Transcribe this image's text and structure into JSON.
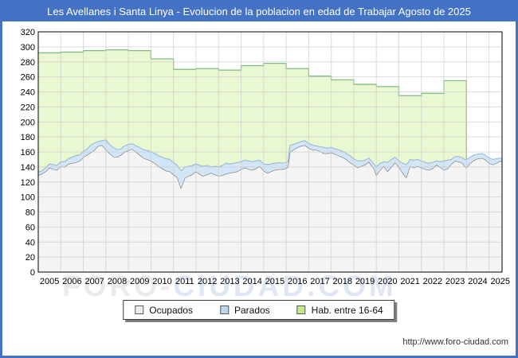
{
  "header": {
    "title": "Les Avellanes i Santa Linya - Evolucion de la poblacion en edad de Trabajar Agosto de 2025"
  },
  "watermark": {
    "part1": "FORO-",
    "part2": "CIUDAD.COM"
  },
  "footer": {
    "url": "http://www.foro-ciudad.com"
  },
  "colors": {
    "accent_blue": "#4473c5",
    "plot_border": "#000000",
    "grid": "#c9c9c9",
    "hab_fill": "#e9f8d1",
    "hab_line": "#81ba81",
    "parados_fill": "#d3e6f7",
    "parados_line": "#92b3d8",
    "ocupados_fill": "#f4f4f4",
    "ocupados_line": "#5a5a5a",
    "axis_text": "#000000",
    "watermark_gray": "#ebebeb",
    "watermark_blue": "#dfe7f6"
  },
  "legend": {
    "items": [
      {
        "label": "Ocupados",
        "swatch": "#ededed"
      },
      {
        "label": "Parados",
        "swatch": "#b9d7ee"
      },
      {
        "label": "Hab. entre 16-64",
        "swatch": "#c4e78d"
      }
    ]
  },
  "chart_data": {
    "type": "area",
    "title": "Les Avellanes i Santa Linya - Evolucion de la poblacion en edad de Trabajar Agosto de 2025",
    "xlabel": "",
    "ylabel": "",
    "x_axis": {
      "tick_years": [
        2005,
        2006,
        2007,
        2008,
        2009,
        2010,
        2011,
        2012,
        2013,
        2014,
        2015,
        2016,
        2017,
        2018,
        2019,
        2020,
        2021,
        2022,
        2023,
        2024,
        2025
      ],
      "range": [
        2005.0,
        2025.58
      ]
    },
    "y_axis": {
      "min": 0,
      "max": 320,
      "step": 20
    },
    "grid": true,
    "legend_position": "bottom",
    "series": [
      {
        "name": "Ocupados",
        "type": "area",
        "x": [
          2005.0,
          2005.17,
          2005.33,
          2005.5,
          2005.67,
          2005.83,
          2006.0,
          2006.17,
          2006.33,
          2006.5,
          2006.67,
          2006.83,
          2007.0,
          2007.17,
          2007.33,
          2007.5,
          2007.67,
          2007.83,
          2008.0,
          2008.17,
          2008.33,
          2008.5,
          2008.67,
          2008.83,
          2009.0,
          2009.17,
          2009.33,
          2009.5,
          2009.67,
          2009.83,
          2010.0,
          2010.17,
          2010.33,
          2010.5,
          2010.67,
          2010.83,
          2011.0,
          2011.17,
          2011.33,
          2011.42,
          2011.5,
          2011.67,
          2011.83,
          2012.0,
          2012.17,
          2012.33,
          2012.5,
          2012.67,
          2012.83,
          2013.0,
          2013.17,
          2013.33,
          2013.5,
          2013.67,
          2013.83,
          2014.0,
          2014.17,
          2014.33,
          2014.5,
          2014.67,
          2014.83,
          2015.0,
          2015.17,
          2015.33,
          2015.5,
          2015.67,
          2015.83,
          2016.0,
          2016.08,
          2016.17,
          2016.33,
          2016.5,
          2016.67,
          2016.83,
          2017.0,
          2017.17,
          2017.33,
          2017.5,
          2017.67,
          2017.83,
          2018.0,
          2018.17,
          2018.33,
          2018.5,
          2018.67,
          2018.83,
          2019.0,
          2019.17,
          2019.33,
          2019.5,
          2019.67,
          2019.83,
          2019.92,
          2020.0,
          2020.17,
          2020.33,
          2020.5,
          2020.67,
          2020.83,
          2021.0,
          2021.17,
          2021.33,
          2021.42,
          2021.5,
          2021.67,
          2021.83,
          2022.0,
          2022.17,
          2022.33,
          2022.5,
          2022.67,
          2022.83,
          2023.0,
          2023.17,
          2023.33,
          2023.5,
          2023.67,
          2023.83,
          2023.92,
          2024.0,
          2024.17,
          2024.33,
          2024.5,
          2024.67,
          2024.83,
          2025.0,
          2025.17,
          2025.33,
          2025.5,
          2025.58
        ],
        "values": [
          129,
          131,
          134,
          139,
          137,
          136,
          141,
          140,
          144,
          145,
          146,
          148,
          153,
          156,
          159,
          163,
          168,
          169,
          163,
          158,
          154,
          153,
          156,
          160,
          162,
          164,
          160,
          156,
          152,
          150,
          148,
          145,
          141,
          138,
          135,
          134,
          130,
          126,
          112,
          118,
          125,
          128,
          130,
          134,
          130,
          128,
          130,
          132,
          130,
          128,
          129,
          131,
          132,
          133,
          134,
          137,
          139,
          137,
          136,
          138,
          141,
          135,
          132,
          134,
          136,
          137,
          137,
          138,
          140,
          160,
          163,
          166,
          168,
          169,
          165,
          163,
          163,
          161,
          158,
          158,
          159,
          157,
          155,
          153,
          150,
          146,
          143,
          139,
          141,
          143,
          147,
          140,
          137,
          129,
          136,
          141,
          134,
          140,
          146,
          140,
          132,
          126,
          134,
          141,
          139,
          141,
          139,
          137,
          136,
          138,
          143,
          140,
          136,
          138,
          144,
          148,
          147,
          145,
          141,
          139,
          145,
          149,
          151,
          152,
          150,
          145,
          143,
          145,
          148,
          147
        ]
      },
      {
        "name": "Parados",
        "type": "area",
        "stacked_on": "Ocupados",
        "x": "same_as_ocupados",
        "values": [
          4,
          4,
          5,
          5,
          6,
          6,
          6,
          7,
          7,
          8,
          9,
          8,
          8,
          8,
          10,
          9,
          6,
          6,
          13,
          12,
          12,
          10,
          8,
          8,
          8,
          7,
          8,
          10,
          11,
          12,
          12,
          13,
          14,
          15,
          16,
          16,
          16,
          16,
          23,
          19,
          15,
          13,
          12,
          10,
          12,
          13,
          12,
          8,
          11,
          12,
          13,
          14,
          12,
          12,
          12,
          10,
          10,
          11,
          11,
          10,
          8,
          9,
          11,
          10,
          9,
          9,
          8,
          8,
          7,
          9,
          7,
          6,
          6,
          6,
          6,
          6,
          5,
          6,
          8,
          7,
          7,
          7,
          8,
          8,
          8,
          9,
          8,
          9,
          7,
          6,
          5,
          6,
          6,
          11,
          9,
          6,
          12,
          10,
          7,
          8,
          13,
          17,
          12,
          9,
          10,
          9,
          9,
          9,
          9,
          8,
          5,
          7,
          12,
          11,
          6,
          6,
          7,
          7,
          9,
          11,
          8,
          7,
          6,
          6,
          6,
          7,
          7,
          6,
          4,
          4
        ]
      },
      {
        "name": "Hab. entre 16-64",
        "type": "step-area",
        "years": [
          2005,
          2006,
          2007,
          2008,
          2009,
          2010,
          2011,
          2012,
          2013,
          2014,
          2015,
          2016,
          2017,
          2018,
          2019,
          2020,
          2021,
          2022,
          2023
        ],
        "values": [
          292,
          293,
          295,
          296,
          295,
          284,
          270,
          271,
          269,
          275,
          278,
          271,
          261,
          256,
          250,
          247,
          235,
          238,
          255
        ],
        "series_ends_at": 2024.0
      }
    ]
  }
}
